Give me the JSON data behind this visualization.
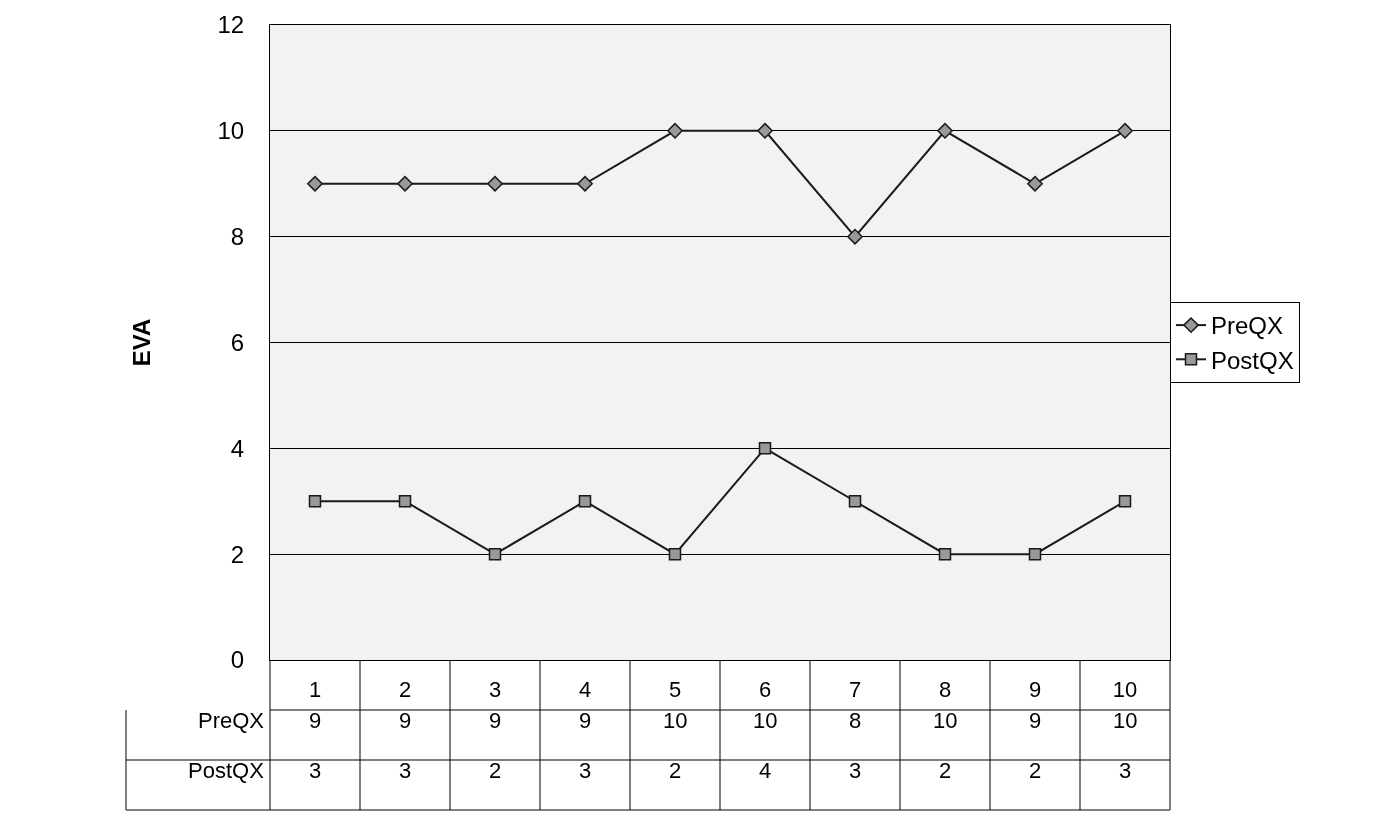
{
  "chart_data": {
    "type": "line",
    "ylabel": "EVA",
    "categories": [
      "1",
      "2",
      "3",
      "4",
      "5",
      "6",
      "7",
      "8",
      "9",
      "10"
    ],
    "series": [
      {
        "name": "PreQX",
        "color": "#1a1a1a",
        "marker": "diamond",
        "values": [
          9,
          9,
          9,
          9,
          10,
          10,
          8,
          10,
          9,
          10
        ]
      },
      {
        "name": "PostQX",
        "color": "#1a1a1a",
        "marker": "square",
        "values": [
          3,
          3,
          2,
          3,
          2,
          4,
          3,
          2,
          2,
          3
        ]
      }
    ],
    "ylim": [
      0,
      12
    ],
    "yticks": [
      0,
      2,
      4,
      6,
      8,
      10,
      12
    ],
    "grid": "y",
    "legend": "right",
    "data_labels": true,
    "line_style": "solid"
  }
}
